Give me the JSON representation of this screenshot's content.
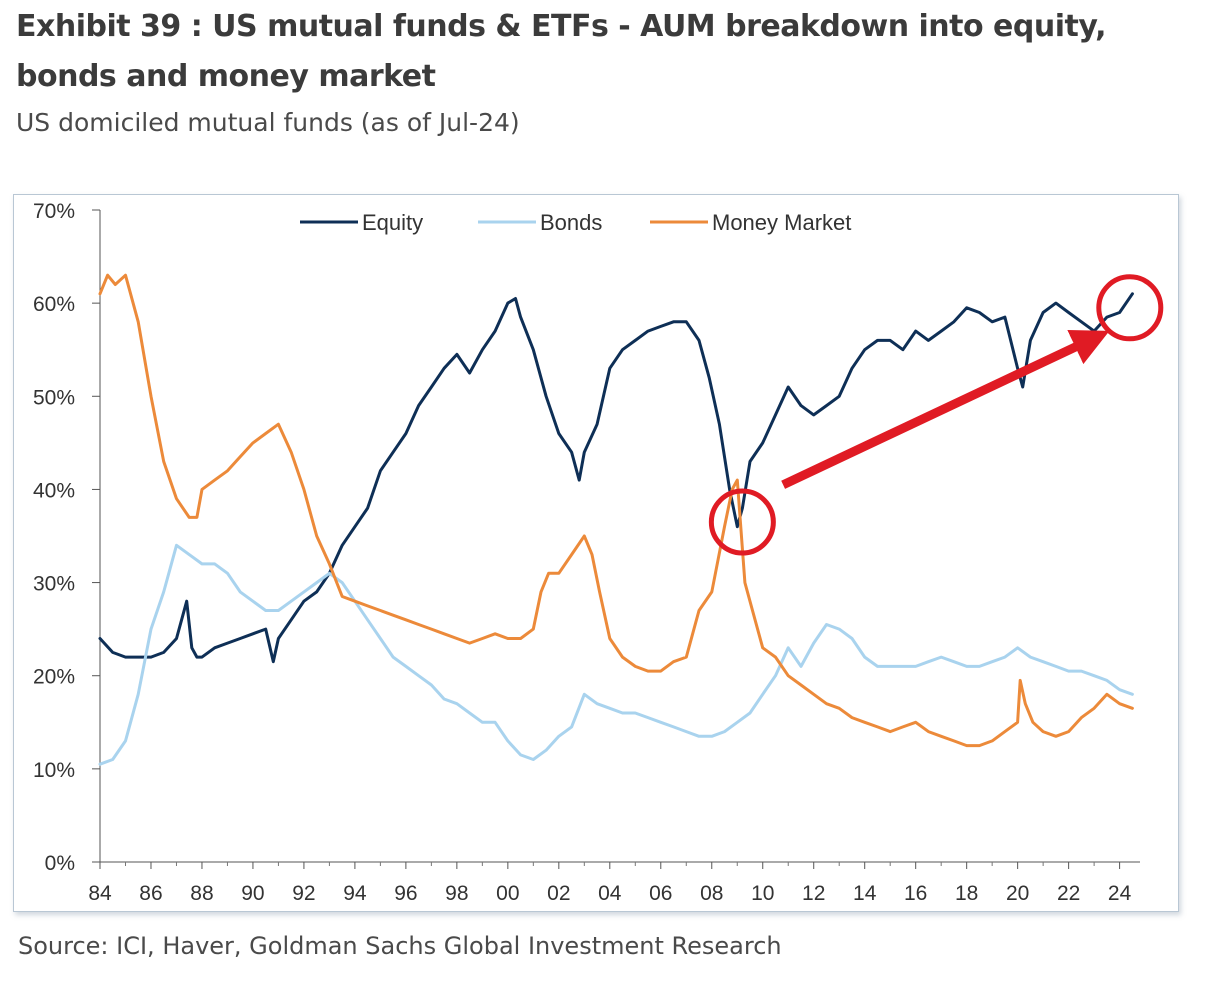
{
  "title": "Exhibit 39 : US mutual funds & ETFs - AUM breakdown into equity, bonds and money market",
  "subtitle": "US domiciled mutual funds (as of Jul-24)",
  "source": "Source: ICI, Haver, Goldman Sachs Global Investment Research",
  "chart_data": {
    "type": "line",
    "title": "Exhibit 39 : US mutual funds & ETFs - AUM breakdown into equity, bonds and money market",
    "xlabel": "",
    "ylabel": "",
    "xlim": [
      1984,
      2024.8
    ],
    "ylim": [
      0,
      70
    ],
    "x_ticks": [
      1984,
      1986,
      1988,
      1990,
      1992,
      1994,
      1996,
      1998,
      2000,
      2002,
      2004,
      2006,
      2008,
      2010,
      2012,
      2014,
      2016,
      2018,
      2020,
      2022,
      2024
    ],
    "x_tick_labels": [
      "84",
      "86",
      "88",
      "90",
      "92",
      "94",
      "96",
      "98",
      "00",
      "02",
      "04",
      "06",
      "08",
      "10",
      "12",
      "14",
      "16",
      "18",
      "20",
      "22",
      "24"
    ],
    "y_ticks": [
      0,
      10,
      20,
      30,
      40,
      50,
      60,
      70
    ],
    "y_tick_labels": [
      "0%",
      "10%",
      "20%",
      "30%",
      "40%",
      "50%",
      "60%",
      "70%"
    ],
    "legend_position": "top",
    "series": [
      {
        "name": "Equity",
        "color": "#0e2f56",
        "x": [
          1984,
          1984.5,
          1985,
          1985.5,
          1986,
          1986.5,
          1987,
          1987.4,
          1987.6,
          1987.8,
          1988,
          1988.5,
          1989,
          1989.5,
          1990,
          1990.5,
          1990.8,
          1991,
          1991.5,
          1992,
          1992.5,
          1993,
          1993.5,
          1994,
          1994.5,
          1995,
          1995.5,
          1996,
          1996.5,
          1997,
          1997.5,
          1998,
          1998.5,
          1999,
          1999.5,
          2000,
          2000.3,
          2000.5,
          2001,
          2001.5,
          2002,
          2002.5,
          2002.8,
          2003,
          2003.5,
          2004,
          2004.5,
          2005,
          2005.5,
          2006,
          2006.5,
          2007,
          2007.5,
          2007.9,
          2008.3,
          2008.7,
          2009,
          2009.2,
          2009.5,
          2010,
          2010.5,
          2011,
          2011.5,
          2012,
          2012.5,
          2013,
          2013.5,
          2014,
          2014.5,
          2015,
          2015.5,
          2016,
          2016.5,
          2017,
          2017.5,
          2018,
          2018.5,
          2019,
          2019.5,
          2020,
          2020.2,
          2020.5,
          2021,
          2021.5,
          2022,
          2022.5,
          2023,
          2023.5,
          2024,
          2024.5
        ],
        "values": [
          24,
          22.5,
          22,
          22,
          22,
          22.5,
          24,
          28,
          23,
          22,
          22,
          23,
          23.5,
          24,
          24.5,
          25,
          21.5,
          24,
          26,
          28,
          29,
          31,
          34,
          36,
          38,
          42,
          44,
          46,
          49,
          51,
          53,
          54.5,
          52.5,
          55,
          57,
          60,
          60.5,
          58.5,
          55,
          50,
          46,
          44,
          41,
          44,
          47,
          53,
          55,
          56,
          57,
          57.5,
          58,
          58,
          56,
          52,
          47,
          40,
          36,
          38,
          43,
          45,
          48,
          51,
          49,
          48,
          49,
          50,
          53,
          55,
          56,
          56,
          55,
          57,
          56,
          57,
          58,
          59.5,
          59,
          58,
          58.5,
          53,
          51,
          56,
          59,
          60,
          59,
          58,
          57,
          58.5,
          59,
          61
        ]
      },
      {
        "name": "Bonds",
        "color": "#a9d3ee",
        "x": [
          1984,
          1984.5,
          1985,
          1985.5,
          1986,
          1986.5,
          1987,
          1987.5,
          1988,
          1988.5,
          1989,
          1989.5,
          1990,
          1990.5,
          1991,
          1991.5,
          1992,
          1992.5,
          1993,
          1993.5,
          1994,
          1994.5,
          1995,
          1995.5,
          1996,
          1996.5,
          1997,
          1997.5,
          1998,
          1998.5,
          1999,
          1999.5,
          2000,
          2000.5,
          2001,
          2001.5,
          2002,
          2002.5,
          2003,
          2003.5,
          2004,
          2004.5,
          2005,
          2005.5,
          2006,
          2006.5,
          2007,
          2007.5,
          2008,
          2008.5,
          2009,
          2009.5,
          2010,
          2010.5,
          2011,
          2011.5,
          2012,
          2012.5,
          2013,
          2013.5,
          2014,
          2014.5,
          2015,
          2015.5,
          2016,
          2016.5,
          2017,
          2017.5,
          2018,
          2018.5,
          2019,
          2019.5,
          2020,
          2020.5,
          2021,
          2021.5,
          2022,
          2022.5,
          2023,
          2023.5,
          2024,
          2024.5
        ],
        "values": [
          10.5,
          11,
          13,
          18,
          25,
          29,
          34,
          33,
          32,
          32,
          31,
          29,
          28,
          27,
          27,
          28,
          29,
          30,
          31,
          30,
          28,
          26,
          24,
          22,
          21,
          20,
          19,
          17.5,
          17,
          16,
          15,
          15,
          13,
          11.5,
          11,
          12,
          13.5,
          14.5,
          18,
          17,
          16.5,
          16,
          16,
          15.5,
          15,
          14.5,
          14,
          13.5,
          13.5,
          14,
          15,
          16,
          18,
          20,
          23,
          21,
          23.5,
          25.5,
          25,
          24,
          22,
          21,
          21,
          21,
          21,
          21.5,
          22,
          21.5,
          21,
          21,
          21.5,
          22,
          23,
          22,
          21.5,
          21,
          20.5,
          20.5,
          20,
          19.5,
          18.5,
          18
        ]
      },
      {
        "name": "Money  Market",
        "color": "#ec8a3a",
        "x": [
          1984,
          1984.3,
          1984.6,
          1985,
          1985.5,
          1986,
          1986.5,
          1987,
          1987.5,
          1987.8,
          1988,
          1988.5,
          1989,
          1989.5,
          1990,
          1990.5,
          1991,
          1991.5,
          1992,
          1992.5,
          1993,
          1993.5,
          1994,
          1994.5,
          1995,
          1995.5,
          1996,
          1996.5,
          1997,
          1997.5,
          1998,
          1998.5,
          1999,
          1999.5,
          2000,
          2000.5,
          2001,
          2001.3,
          2001.6,
          2002,
          2002.5,
          2003,
          2003.3,
          2003.6,
          2004,
          2004.5,
          2005,
          2005.5,
          2006,
          2006.5,
          2007,
          2007.5,
          2008,
          2008.5,
          2008.8,
          2009,
          2009.3,
          2009.6,
          2010,
          2010.5,
          2011,
          2011.5,
          2012,
          2012.5,
          2013,
          2013.5,
          2014,
          2014.5,
          2015,
          2015.5,
          2016,
          2016.5,
          2017,
          2017.5,
          2018,
          2018.5,
          2019,
          2019.5,
          2020,
          2020.1,
          2020.3,
          2020.6,
          2021,
          2021.5,
          2022,
          2022.5,
          2023,
          2023.5,
          2024,
          2024.5
        ],
        "values": [
          61,
          63,
          62,
          63,
          58,
          50,
          43,
          39,
          37,
          37,
          40,
          41,
          42,
          43.5,
          45,
          46,
          47,
          44,
          40,
          35,
          32,
          28.5,
          28,
          27.5,
          27,
          26.5,
          26,
          25.5,
          25,
          24.5,
          24,
          23.5,
          24,
          24.5,
          24,
          24,
          25,
          29,
          31,
          31,
          33,
          35,
          33,
          29,
          24,
          22,
          21,
          20.5,
          20.5,
          21.5,
          22,
          27,
          29,
          36,
          40,
          41,
          30,
          27,
          23,
          22,
          20,
          19,
          18,
          17,
          16.5,
          15.5,
          15,
          14.5,
          14,
          14.5,
          15,
          14,
          13.5,
          13,
          12.5,
          12.5,
          13,
          14,
          15,
          19.5,
          17,
          15,
          14,
          13.5,
          14,
          15.5,
          16.5,
          18,
          17,
          16.5
        ]
      }
    ],
    "annotations": [
      {
        "type": "circle",
        "x": 2009.2,
        "y": 36.5,
        "color": "#e01b24"
      },
      {
        "type": "circle",
        "x": 2024.4,
        "y": 59.5,
        "color": "#e01b24"
      },
      {
        "type": "arrow",
        "from": [
          2010.8,
          40.5
        ],
        "to": [
          2023.2,
          56.5
        ],
        "color": "#e01b24"
      }
    ]
  }
}
